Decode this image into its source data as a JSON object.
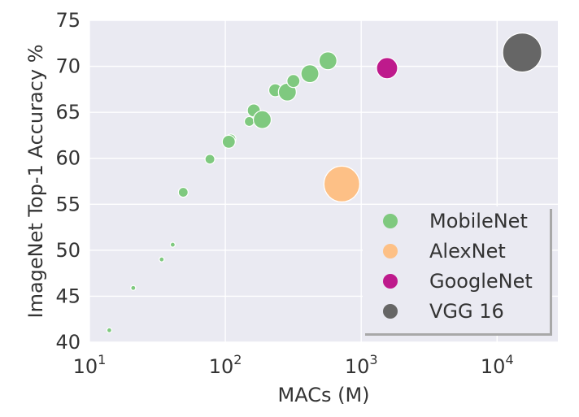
{
  "chart_data": {
    "type": "scatter",
    "xlabel": "MACs (M)",
    "ylabel": "ImageNet Top-1 Accuracy %",
    "xscale": "log",
    "xlim": [
      10,
      28000
    ],
    "ylim": [
      40,
      75
    ],
    "xticks": [
      {
        "value": 10,
        "base": "10",
        "exp": "1"
      },
      {
        "value": 100,
        "base": "10",
        "exp": "2"
      },
      {
        "value": 1000,
        "base": "10",
        "exp": "3"
      },
      {
        "value": 10000,
        "base": "10",
        "exp": "4"
      }
    ],
    "yticks": [
      40,
      45,
      50,
      55,
      60,
      65,
      70,
      75
    ],
    "grid": true,
    "background": "#EAEAF2",
    "legend_position": "lower-right",
    "series": [
      {
        "name": "MobileNet",
        "color": "#7FC97F",
        "points": [
          {
            "x": 14,
            "y": 41.3,
            "size": 3
          },
          {
            "x": 21,
            "y": 45.9,
            "size": 3
          },
          {
            "x": 34,
            "y": 49.0,
            "size": 3
          },
          {
            "x": 41,
            "y": 50.6,
            "size": 3
          },
          {
            "x": 49,
            "y": 56.3,
            "size": 6
          },
          {
            "x": 77,
            "y": 59.9,
            "size": 6
          },
          {
            "x": 110,
            "y": 62.1,
            "size": 6
          },
          {
            "x": 106,
            "y": 61.8,
            "size": 8
          },
          {
            "x": 150,
            "y": 64.0,
            "size": 6
          },
          {
            "x": 162,
            "y": 65.2,
            "size": 8
          },
          {
            "x": 187,
            "y": 64.2,
            "size": 11
          },
          {
            "x": 233,
            "y": 67.4,
            "size": 8
          },
          {
            "x": 286,
            "y": 67.2,
            "size": 11
          },
          {
            "x": 317,
            "y": 68.4,
            "size": 8
          },
          {
            "x": 419,
            "y": 69.2,
            "size": 11
          },
          {
            "x": 569,
            "y": 70.6,
            "size": 11
          }
        ]
      },
      {
        "name": "AlexNet",
        "color": "#FDC086",
        "points": [
          {
            "x": 720,
            "y": 57.2,
            "size": 22
          }
        ]
      },
      {
        "name": "GoogleNet",
        "color": "#BE1A8C",
        "points": [
          {
            "x": 1550,
            "y": 69.8,
            "size": 13
          }
        ]
      },
      {
        "name": "VGG 16",
        "color": "#666666",
        "points": [
          {
            "x": 15300,
            "y": 71.5,
            "size": 24
          }
        ]
      }
    ]
  }
}
